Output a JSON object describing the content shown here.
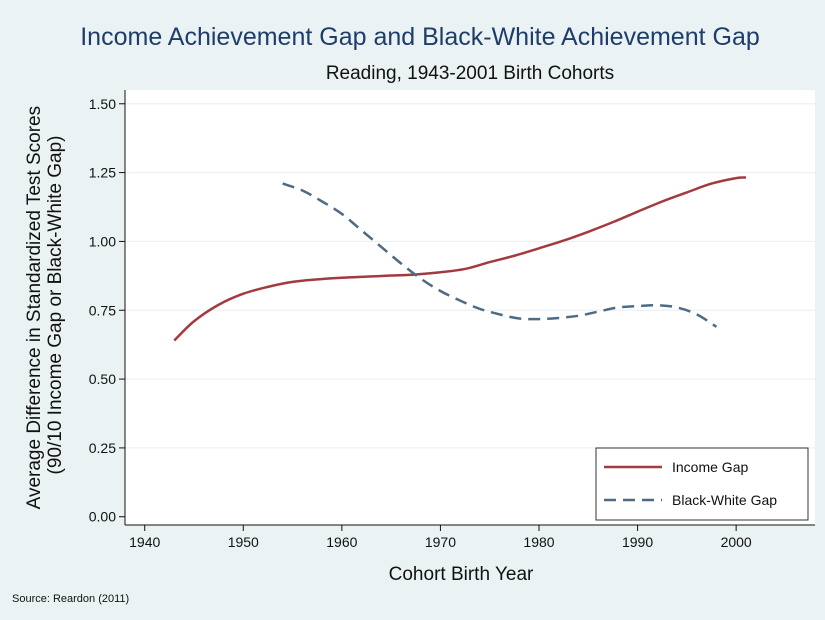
{
  "figure": {
    "source_note": "Source: Reardon (2011)"
  },
  "colors": {
    "background": "#eaf2f3",
    "plot_background": "#ffffff",
    "title": "#1e3d6b",
    "income_gap": "#a33a3f",
    "black_white_gap": "#4d6b84",
    "gridline": "#e9eef0"
  },
  "chart_data": {
    "type": "line",
    "title": "Income Achievement Gap and Black-White Achievement Gap",
    "subtitle": "Reading, 1943-2001 Birth Cohorts",
    "xlabel": "Cohort Birth Year",
    "ylabel": [
      "Average Difference in Standardized Test Scores",
      "(90/10 Income Gap or Black-White Gap)"
    ],
    "xlim": [
      1938,
      2008
    ],
    "ylim": [
      -0.03,
      1.55
    ],
    "x_ticks": [
      1940,
      1950,
      1960,
      1970,
      1980,
      1990,
      2000
    ],
    "y_ticks": [
      0,
      0.25,
      0.5,
      0.75,
      1.0,
      1.25,
      1.5
    ],
    "y_tick_labels": [
      "0.00",
      "0.25",
      "0.50",
      "0.75",
      "1.00",
      "1.25",
      "1.50"
    ],
    "grid": "horizontal",
    "legend_position": "bottom-right",
    "series": [
      {
        "name": "Income Gap",
        "style": "solid",
        "color": "#a33a3f",
        "x": [
          1943,
          1945,
          1947.5,
          1950,
          1952.5,
          1955,
          1957.5,
          1960,
          1962.5,
          1965,
          1967.5,
          1970,
          1972.5,
          1975,
          1977.5,
          1980,
          1982.5,
          1985,
          1987.5,
          1990,
          1992.5,
          1995,
          1997.5,
          2000,
          2001
        ],
        "values": [
          0.64,
          0.71,
          0.77,
          0.81,
          0.835,
          0.853,
          0.862,
          0.868,
          0.872,
          0.876,
          0.88,
          0.888,
          0.9,
          0.925,
          0.948,
          0.975,
          1.003,
          1.035,
          1.07,
          1.108,
          1.145,
          1.178,
          1.21,
          1.23,
          1.232
        ]
      },
      {
        "name": "Black-White Gap",
        "style": "dashed",
        "color": "#4d6b84",
        "x": [
          1954,
          1956,
          1958,
          1960,
          1962,
          1964,
          1966,
          1968,
          1970,
          1972,
          1974,
          1976,
          1978,
          1980,
          1982,
          1984,
          1986,
          1988,
          1990,
          1992,
          1994,
          1996,
          1998
        ],
        "values": [
          1.21,
          1.185,
          1.145,
          1.1,
          1.04,
          0.98,
          0.92,
          0.865,
          0.82,
          0.785,
          0.755,
          0.735,
          0.72,
          0.718,
          0.722,
          0.73,
          0.745,
          0.76,
          0.765,
          0.768,
          0.76,
          0.735,
          0.69
        ]
      }
    ]
  }
}
